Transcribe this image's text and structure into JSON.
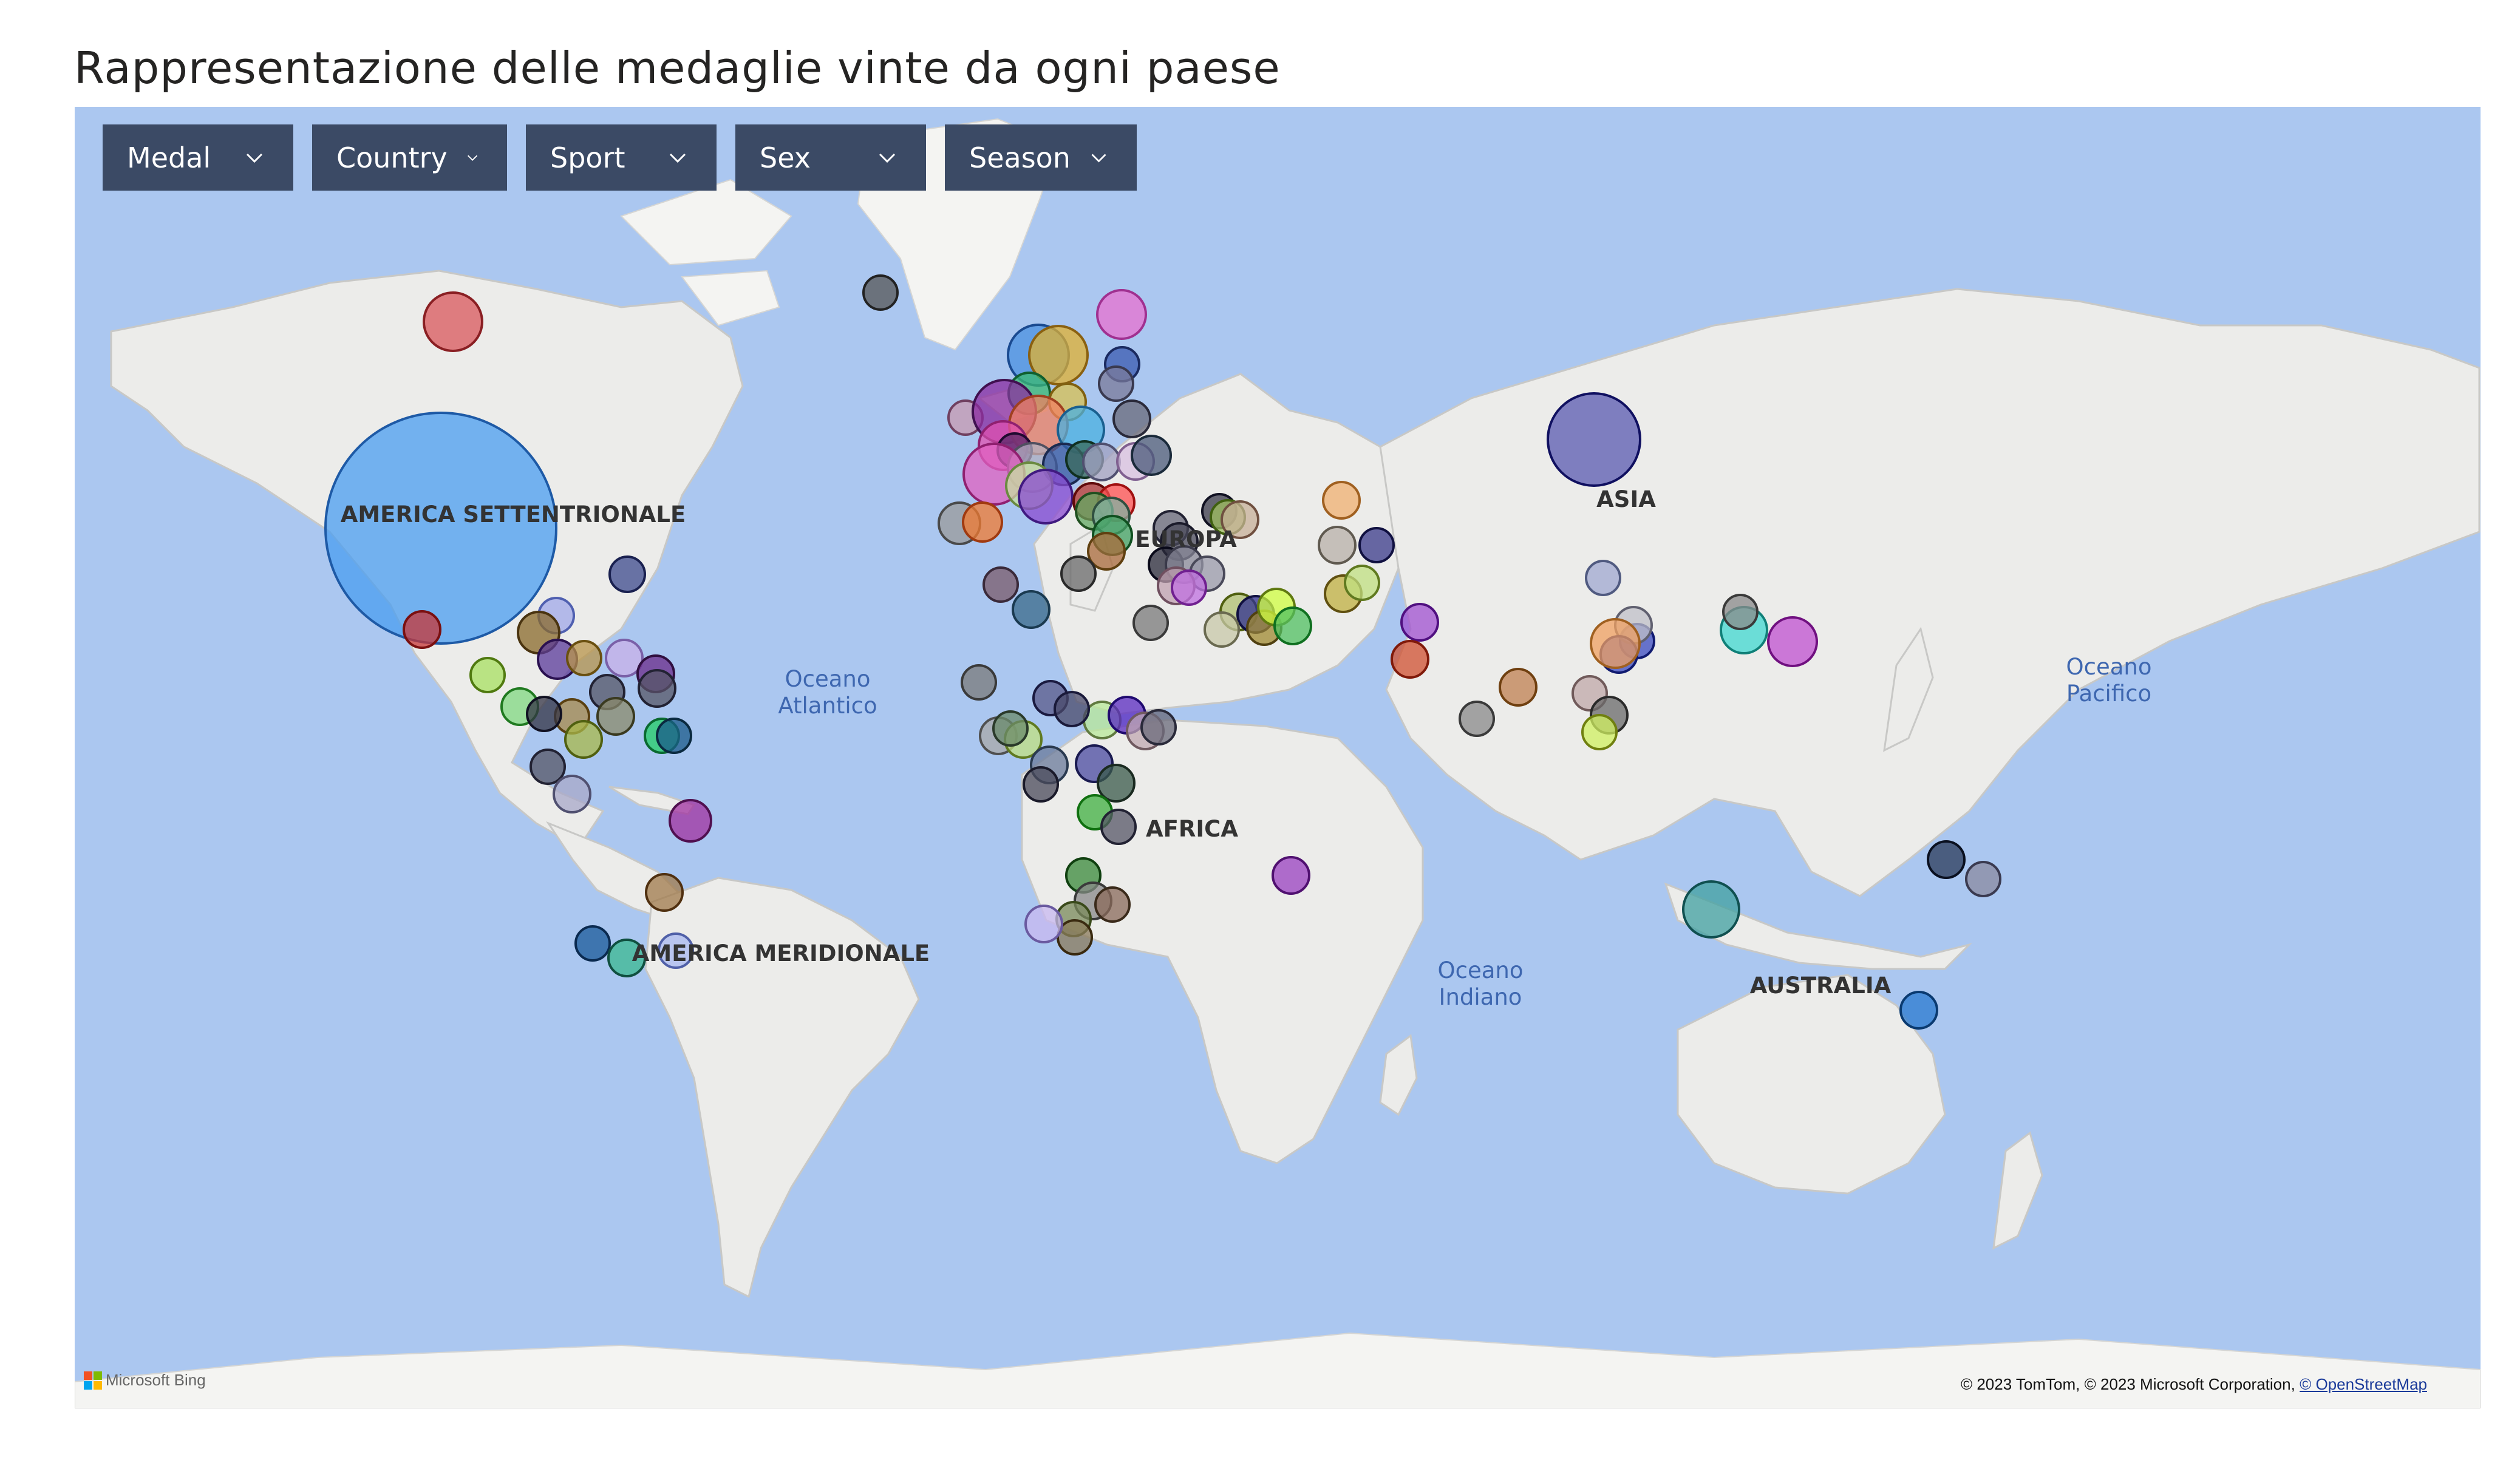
{
  "title": "Rappresentazione delle medaglie vinte da ogni paese",
  "filters": [
    {
      "label": "Medal"
    },
    {
      "label": "Country"
    },
    {
      "label": "Sport"
    },
    {
      "label": "Sex"
    },
    {
      "label": "Season"
    }
  ],
  "continents": {
    "north_america": "AMERICA SETTENTRIONALE",
    "south_america": "AMERICA MERIDIONALE",
    "europe": "EUROPA",
    "africa": "AFRICA",
    "asia": "ASIA",
    "australia": "AUSTRALIA"
  },
  "oceans": {
    "atlantic": "Oceano Atlantico",
    "pacific": "Oceano Pacifico",
    "indian": "Oceano Indiano"
  },
  "attribution": {
    "brand": "Microsoft Bing",
    "copyright": "© 2023 TomTom, © 2023 Microsoft Corporation,",
    "osm_link": "© OpenStreetMap"
  },
  "icons": {
    "filter_chevron": "chevron-down-icon",
    "bing_logo": "microsoft-logo-icon"
  },
  "colors": {
    "map_water": "#abc7f0",
    "land": "#ececea",
    "filter_bg": "#3b4a65"
  }
}
